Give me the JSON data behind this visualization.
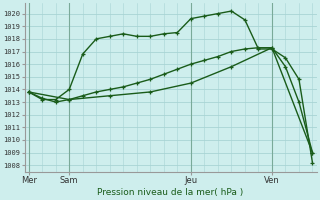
{
  "title": "Pression niveau de la mer( hPa )",
  "ylabel_vals": [
    1008,
    1009,
    1010,
    1011,
    1012,
    1013,
    1014,
    1015,
    1016,
    1017,
    1018,
    1019,
    1020
  ],
  "ylim": [
    1007.5,
    1020.8
  ],
  "xlim": [
    -0.3,
    21.3
  ],
  "day_labels": [
    "Mer",
    "Sam",
    "Jeu",
    "Ven"
  ],
  "day_positions": [
    0,
    3,
    12,
    18
  ],
  "bg_color": "#ceeeed",
  "grid_color": "#a8d4d4",
  "line_color": "#1a5c1a",
  "line1_x": [
    0,
    1,
    2,
    3,
    4,
    5,
    6,
    7,
    8,
    9,
    10,
    11,
    12,
    13,
    14,
    15,
    16,
    17,
    18,
    19,
    20,
    21
  ],
  "line1_y": [
    1013.8,
    1013.2,
    1013.2,
    1014.0,
    1016.8,
    1018.0,
    1018.2,
    1018.4,
    1018.2,
    1018.2,
    1018.4,
    1018.5,
    1019.6,
    1019.8,
    1020.0,
    1020.2,
    1019.5,
    1017.2,
    1017.2,
    1016.5,
    1014.8,
    1008.2
  ],
  "line2_x": [
    0,
    1,
    2,
    3,
    4,
    5,
    6,
    7,
    8,
    9,
    10,
    11,
    12,
    13,
    14,
    15,
    16,
    17,
    18,
    19,
    20,
    21
  ],
  "line2_y": [
    1013.8,
    1013.3,
    1013.0,
    1013.2,
    1013.5,
    1013.8,
    1014.0,
    1014.2,
    1014.5,
    1014.8,
    1015.2,
    1015.6,
    1016.0,
    1016.3,
    1016.6,
    1017.0,
    1017.2,
    1017.3,
    1017.3,
    1015.8,
    1013.0,
    1009.0
  ],
  "line3_x": [
    0,
    3,
    6,
    9,
    12,
    15,
    18,
    21
  ],
  "line3_y": [
    1013.8,
    1013.2,
    1013.5,
    1013.8,
    1014.5,
    1015.8,
    1017.3,
    1009.0
  ],
  "vline_positions": [
    0,
    3,
    12,
    18
  ],
  "total_points": 22,
  "n_vertical_grid": 22
}
